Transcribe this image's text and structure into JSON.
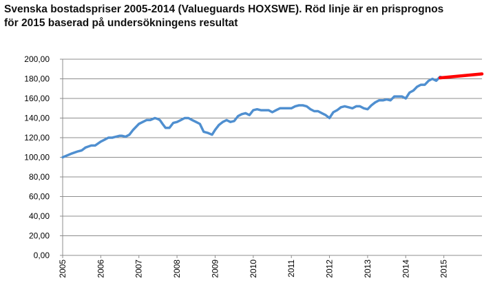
{
  "title_line1": "Svenska bostadspriser 2005-2014 (Valueguards HOXSWE). Röd linje är en prisprognos",
  "title_line2": "för 2015 baserad på undersökningens resultat",
  "chart_data": {
    "type": "line",
    "title": "Svenska bostadspriser 2005-2014 (Valueguards HOXSWE). Röd linje är en prisprognos för 2015 baserad på undersökningens resultat",
    "xlabel": "",
    "ylabel": "",
    "x_tick_labels": [
      "2005",
      "2006",
      "2007",
      "2008",
      "2009",
      "2010",
      "2011",
      "2012",
      "2013",
      "2014",
      "2015"
    ],
    "y_tick_labels": [
      "0,00",
      "20,00",
      "40,00",
      "60,00",
      "80,00",
      "100,00",
      "120,00",
      "140,00",
      "160,00",
      "180,00",
      "200,00"
    ],
    "ylim": [
      0,
      200
    ],
    "xlim": [
      2005.0,
      2016.0
    ],
    "grid": "horizontal",
    "legend": "none",
    "series": [
      {
        "color": "#4f8fd0",
        "x": [
          2005.0,
          2005.25,
          2005.4,
          2005.5,
          2005.6,
          2005.75,
          2005.85,
          2006.0,
          2006.1,
          2006.2,
          2006.3,
          2006.4,
          2006.5,
          2006.55,
          2006.65,
          2006.75,
          2006.85,
          2007.0,
          2007.1,
          2007.2,
          2007.3,
          2007.42,
          2007.5,
          2007.55,
          2007.62,
          2007.7,
          2007.8,
          2007.9,
          2008.0,
          2008.1,
          2008.2,
          2008.3,
          2008.4,
          2008.5,
          2008.6,
          2008.7,
          2008.8,
          2008.92,
          2009.0,
          2009.1,
          2009.2,
          2009.3,
          2009.4,
          2009.5,
          2009.6,
          2009.7,
          2009.8,
          2009.9,
          2010.0,
          2010.1,
          2010.2,
          2010.3,
          2010.4,
          2010.5,
          2010.6,
          2010.7,
          2010.8,
          2010.9,
          2011.0,
          2011.1,
          2011.2,
          2011.3,
          2011.4,
          2011.5,
          2011.6,
          2011.7,
          2011.8,
          2011.9,
          2012.0,
          2012.1,
          2012.2,
          2012.3,
          2012.4,
          2012.5,
          2012.6,
          2012.7,
          2012.8,
          2012.9,
          2013.0,
          2013.1,
          2013.2,
          2013.3,
          2013.4,
          2013.5,
          2013.6,
          2013.7,
          2013.8,
          2013.9,
          2014.0,
          2014.1,
          2014.2,
          2014.3,
          2014.4,
          2014.5,
          2014.6,
          2014.7,
          2014.8,
          2014.9,
          2015.0
        ],
        "values": [
          100,
          104,
          106,
          107,
          110,
          112,
          112,
          116,
          118,
          120,
          120,
          121,
          122,
          122,
          121,
          123,
          128,
          134,
          136,
          138,
          138,
          140,
          139,
          138,
          134,
          130,
          130,
          135,
          136,
          138,
          140,
          140,
          138,
          136,
          134,
          126,
          125,
          123,
          128,
          133,
          136,
          138,
          136,
          137,
          142,
          144,
          145,
          143,
          148,
          149,
          148,
          148,
          148,
          146,
          148,
          150,
          150,
          150,
          150,
          152,
          153,
          153,
          152,
          149,
          147,
          147,
          145,
          143,
          140,
          146,
          148,
          151,
          152,
          151,
          150,
          152,
          152,
          150,
          149,
          153,
          156,
          158,
          158,
          159,
          158,
          162,
          162,
          162,
          160,
          166,
          168,
          172,
          174,
          174,
          178,
          180,
          178,
          182,
          181
        ]
      },
      {
        "color": "#ff0000",
        "x": [
          2014.9,
          2016.0
        ],
        "values": [
          181,
          185
        ]
      }
    ]
  }
}
